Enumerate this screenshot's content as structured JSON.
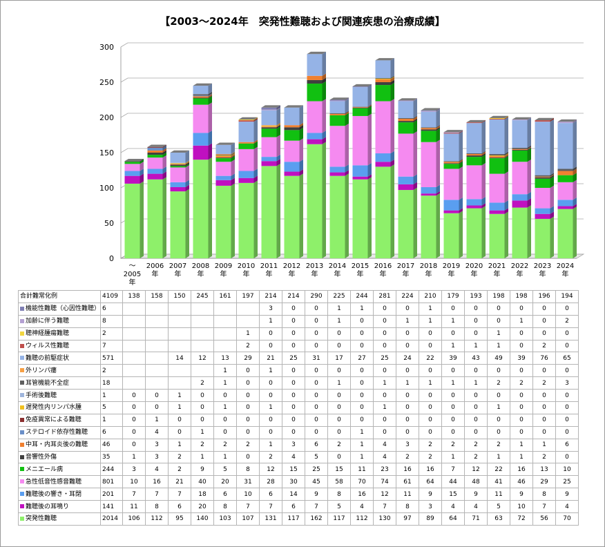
{
  "chart_data": {
    "type": "bar",
    "stacked": true,
    "title": "【2003～2024年　突発性難聴および関連疾患の治療成績】",
    "categories": [
      "～\n2005\n年",
      "2006\n年",
      "2007\n年",
      "2008\n年",
      "2009\n年",
      "2010\n年",
      "2011\n年",
      "2012\n年",
      "2013\n年",
      "2014\n年",
      "2015\n年",
      "2016\n年",
      "2017\n年",
      "2018\n年",
      "2019\n年",
      "2020\n年",
      "2021\n年",
      "2022\n年",
      "2023\n年",
      "2024\n年"
    ],
    "ylim": [
      0,
      300
    ],
    "yticks": [
      0,
      50,
      100,
      150,
      200,
      250,
      300
    ],
    "grid": true,
    "summary_row": {
      "name": "合計難常化例",
      "total": "4109",
      "values": [
        "138",
        "158",
        "150",
        "245",
        "161",
        "197",
        "214",
        "214",
        "290",
        "225",
        "244",
        "281",
        "224",
        "210",
        "179",
        "193",
        "198",
        "198",
        "196",
        "194"
      ]
    },
    "series": [
      {
        "name": "機能性難聴（心因性難聴）",
        "total": "6",
        "color": "#7f7fb4",
        "values": [
          "",
          "",
          "",
          "",
          "",
          "",
          "3",
          "0",
          "0",
          "1",
          "1",
          "0",
          "0",
          "1",
          "0",
          "0",
          "0",
          "0",
          "0",
          "0"
        ]
      },
      {
        "name": "加齢に伴う難聴",
        "total": "8",
        "color": "#b4a0d2",
        "values": [
          "",
          "",
          "",
          "",
          "",
          "",
          "1",
          "0",
          "0",
          "1",
          "0",
          "0",
          "1",
          "1",
          "1",
          "0",
          "0",
          "1",
          "0",
          "2"
        ]
      },
      {
        "name": "聴神経腫瘍難聴",
        "total": "2",
        "color": "#f2d640",
        "values": [
          "",
          "",
          "",
          "",
          "",
          "1",
          "0",
          "0",
          "0",
          "0",
          "0",
          "0",
          "0",
          "0",
          "0",
          "0",
          "1",
          "0",
          "0",
          "0"
        ]
      },
      {
        "name": "ウィルス性難聴",
        "total": "7",
        "color": "#c0504d",
        "values": [
          "",
          "",
          "",
          "",
          "",
          "2",
          "0",
          "0",
          "0",
          "0",
          "0",
          "0",
          "0",
          "0",
          "1",
          "1",
          "1",
          "0",
          "2",
          "0"
        ]
      },
      {
        "name": "難聴の前駆症状",
        "total": "571",
        "color": "#95b3e6",
        "values": [
          "",
          "",
          "14",
          "12",
          "13",
          "29",
          "21",
          "25",
          "31",
          "17",
          "27",
          "25",
          "24",
          "22",
          "39",
          "43",
          "49",
          "39",
          "76",
          "65"
        ]
      },
      {
        "name": "外リンパ瘻",
        "total": "2",
        "color": "#f7a044",
        "values": [
          "",
          "",
          "",
          "",
          "1",
          "0",
          "1",
          "0",
          "0",
          "0",
          "0",
          "0",
          "0",
          "0",
          "0",
          "0",
          "0",
          "0",
          "0",
          "0"
        ]
      },
      {
        "name": "耳管機能不全症",
        "total": "18",
        "color": "#5f5f5f",
        "values": [
          "",
          "",
          "",
          "2",
          "1",
          "0",
          "0",
          "0",
          "0",
          "1",
          "0",
          "1",
          "1",
          "1",
          "1",
          "1",
          "2",
          "2",
          "2",
          "3"
        ]
      },
      {
        "name": "手術後難聴",
        "total": "1",
        "color": "#9fb5dc",
        "values": [
          "0",
          "0",
          "1",
          "0",
          "0",
          "0",
          "0",
          "0",
          "0",
          "0",
          "0",
          "0",
          "0",
          "0",
          "0",
          "0",
          "0",
          "0",
          "0",
          "0"
        ]
      },
      {
        "name": "遅発性内リンパ水腫",
        "total": "5",
        "color": "#f0c020",
        "values": [
          "0",
          "0",
          "1",
          "0",
          "1",
          "0",
          "1",
          "0",
          "0",
          "0",
          "0",
          "1",
          "0",
          "0",
          "0",
          "0",
          "1",
          "0",
          "0",
          "0"
        ]
      },
      {
        "name": "免疫異常による難聴",
        "total": "1",
        "color": "#8b2f2f",
        "values": [
          "0",
          "1",
          "0",
          "0",
          "0",
          "0",
          "0",
          "0",
          "0",
          "0",
          "0",
          "0",
          "0",
          "0",
          "0",
          "0",
          "0",
          "0",
          "0",
          "0"
        ]
      },
      {
        "name": "ステロイド依存性難聴",
        "total": "6",
        "color": "#6a8fc8",
        "values": [
          "0",
          "4",
          "0",
          "1",
          "0",
          "0",
          "0",
          "0",
          "0",
          "0",
          "1",
          "0",
          "0",
          "0",
          "0",
          "0",
          "0",
          "0",
          "0",
          "0"
        ]
      },
      {
        "name": "中耳・内耳炎後の難聴",
        "total": "46",
        "color": "#f08030",
        "values": [
          "0",
          "3",
          "1",
          "2",
          "2",
          "2",
          "1",
          "3",
          "6",
          "2",
          "1",
          "4",
          "3",
          "2",
          "2",
          "2",
          "2",
          "1",
          "1",
          "6"
        ]
      },
      {
        "name": "音響性外傷",
        "total": "35",
        "color": "#404040",
        "values": [
          "1",
          "3",
          "2",
          "1",
          "1",
          "0",
          "2",
          "4",
          "5",
          "0",
          "1",
          "4",
          "2",
          "2",
          "1",
          "2",
          "1",
          "1",
          "2",
          "0"
        ]
      },
      {
        "name": "メニエール病",
        "total": "244",
        "color": "#11c011",
        "values": [
          "3",
          "4",
          "2",
          "9",
          "5",
          "8",
          "12",
          "15",
          "25",
          "15",
          "11",
          "23",
          "16",
          "16",
          "7",
          "12",
          "22",
          "16",
          "13",
          "10"
        ]
      },
      {
        "name": "急性低音性感音難聴",
        "total": "801",
        "color": "#f58af0",
        "values": [
          "10",
          "16",
          "21",
          "40",
          "20",
          "31",
          "28",
          "30",
          "45",
          "58",
          "70",
          "74",
          "61",
          "64",
          "44",
          "48",
          "41",
          "46",
          "29",
          "25"
        ]
      },
      {
        "name": "難聴後の響き・耳閉",
        "total": "201",
        "color": "#5a9ef0",
        "values": [
          "7",
          "7",
          "7",
          "18",
          "6",
          "10",
          "6",
          "14",
          "9",
          "8",
          "16",
          "12",
          "11",
          "9",
          "15",
          "9",
          "11",
          "9",
          "8",
          "9"
        ]
      },
      {
        "name": "難聴後の耳鳴り",
        "total": "141",
        "color": "#c010c0",
        "values": [
          "11",
          "8",
          "6",
          "20",
          "8",
          "7",
          "7",
          "6",
          "7",
          "5",
          "4",
          "7",
          "8",
          "3",
          "4",
          "4",
          "5",
          "10",
          "7",
          "4"
        ]
      },
      {
        "name": "突発性難聴",
        "total": "2014",
        "color": "#8ef06a",
        "values": [
          "106",
          "112",
          "95",
          "140",
          "103",
          "107",
          "131",
          "117",
          "162",
          "117",
          "112",
          "130",
          "97",
          "89",
          "64",
          "71",
          "63",
          "72",
          "56",
          "70"
        ]
      }
    ]
  }
}
